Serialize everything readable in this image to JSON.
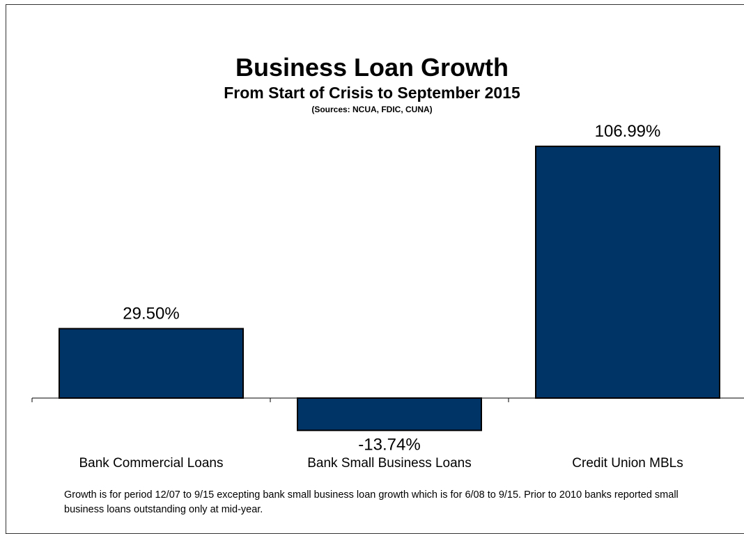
{
  "chart_data": {
    "type": "bar",
    "title": "Business Loan Growth",
    "subtitle": "From Start of Crisis to September 2015",
    "source_note": "(Sources: NCUA, FDIC, CUNA)",
    "categories": [
      "Bank Commercial Loans",
      "Bank Small Business Loans",
      "Credit Union MBLs"
    ],
    "values": [
      29.5,
      -13.74,
      106.99
    ],
    "data_labels": [
      "29.50%",
      "-13.74%",
      "106.99%"
    ],
    "unit": "%",
    "ylim": [
      -20,
      130
    ],
    "grid": false,
    "legend": "none",
    "bar_color": "#003366",
    "bar_edge_color": "#000000"
  },
  "footnote": "Growth is for period 12/07 to 9/15 excepting bank small business loan growth which is for 6/08 to 9/15.  Prior to 2010 banks reported small business loans outstanding only at mid-year."
}
